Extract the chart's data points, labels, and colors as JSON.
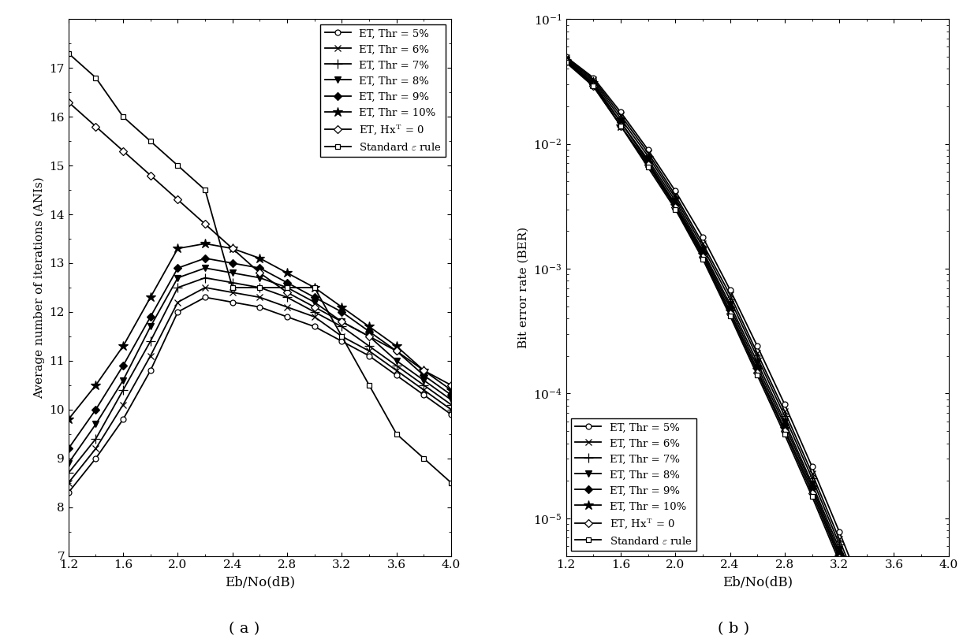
{
  "x_values": [
    1.2,
    1.4,
    1.6,
    1.8,
    2.0,
    2.2,
    2.4,
    2.6,
    2.8,
    3.0,
    3.2,
    3.4,
    3.6,
    3.8,
    4.0
  ],
  "ani_thr5": [
    8.3,
    9.0,
    9.8,
    10.8,
    12.0,
    12.3,
    12.2,
    12.1,
    11.9,
    11.7,
    11.4,
    11.1,
    10.7,
    10.3,
    9.9
  ],
  "ani_thr6": [
    8.5,
    9.2,
    10.1,
    11.1,
    12.2,
    12.5,
    12.4,
    12.3,
    12.1,
    11.9,
    11.5,
    11.2,
    10.8,
    10.4,
    10.0
  ],
  "ani_thr7": [
    8.7,
    9.4,
    10.4,
    11.4,
    12.5,
    12.7,
    12.6,
    12.5,
    12.3,
    12.0,
    11.7,
    11.3,
    10.9,
    10.5,
    10.1
  ],
  "ani_thr8": [
    8.9,
    9.7,
    10.6,
    11.7,
    12.7,
    12.9,
    12.8,
    12.7,
    12.5,
    12.2,
    11.8,
    11.5,
    11.0,
    10.6,
    10.2
  ],
  "ani_thr9": [
    9.2,
    10.0,
    10.9,
    11.9,
    12.9,
    13.1,
    13.0,
    12.9,
    12.6,
    12.3,
    12.0,
    11.6,
    11.2,
    10.7,
    10.3
  ],
  "ani_thr10": [
    9.8,
    10.5,
    11.3,
    12.3,
    13.3,
    13.4,
    13.3,
    13.1,
    12.8,
    12.5,
    12.1,
    11.7,
    11.3,
    10.8,
    10.4
  ],
  "ani_hx": [
    16.3,
    15.8,
    15.3,
    14.8,
    14.3,
    13.8,
    13.3,
    12.8,
    12.4,
    12.1,
    11.8,
    11.5,
    11.2,
    10.8,
    10.5
  ],
  "ani_std": [
    17.3,
    16.8,
    16.0,
    15.5,
    15.0,
    14.5,
    12.5,
    12.5,
    12.5,
    12.5,
    11.5,
    10.5,
    9.5,
    9.0,
    8.5
  ],
  "ber_thr5": [
    0.05,
    0.034,
    0.018,
    0.009,
    0.0042,
    0.0018,
    0.00068,
    0.00024,
    8.2e-05,
    2.6e-05,
    7.8e-06,
    2.2e-06,
    5.8e-07,
    1.4e-07,
    3.2e-08
  ],
  "ber_thr6": [
    0.049,
    0.033,
    0.017,
    0.0085,
    0.0039,
    0.0016,
    0.00062,
    0.00021,
    7.2e-05,
    2.3e-05,
    6.8e-06,
    1.9e-06,
    5e-07,
    1.2e-07,
    2.8e-08
  ],
  "ber_thr7": [
    0.048,
    0.032,
    0.016,
    0.008,
    0.0037,
    0.0015,
    0.00057,
    0.000195,
    6.6e-05,
    2.1e-05,
    6.2e-06,
    1.75e-06,
    4.6e-07,
    1.1e-07,
    2.6e-08
  ],
  "ber_thr8": [
    0.047,
    0.031,
    0.015,
    0.0075,
    0.0035,
    0.0014,
    0.00052,
    0.000178,
    6e-05,
    1.9e-05,
    5.7e-06,
    1.6e-06,
    4.2e-07,
    1e-07,
    2.4e-08
  ],
  "ber_thr9": [
    0.047,
    0.03,
    0.015,
    0.0072,
    0.0033,
    0.00135,
    0.00049,
    0.000165,
    5.6e-05,
    1.8e-05,
    5.3e-06,
    1.5e-06,
    3.9e-07,
    9.5e-08,
    2.2e-08
  ],
  "ber_thr10": [
    0.046,
    0.03,
    0.014,
    0.007,
    0.0032,
    0.0013,
    0.00046,
    0.000155,
    5.2e-05,
    1.7e-05,
    5e-06,
    1.4e-06,
    3.7e-07,
    9e-08,
    2.1e-08
  ],
  "ber_hx": [
    0.046,
    0.029,
    0.014,
    0.0068,
    0.0031,
    0.00125,
    0.00044,
    0.000148,
    5e-05,
    1.6e-05,
    4.8e-06,
    1.35e-06,
    3.5e-07,
    8.5e-08,
    2e-08
  ],
  "ber_std": [
    0.045,
    0.029,
    0.014,
    0.0065,
    0.003,
    0.0012,
    0.00042,
    0.00014,
    4.7e-05,
    1.5e-05,
    4.5e-06,
    1.25e-06,
    3.2e-07,
    7.8e-08,
    1.8e-08
  ],
  "ylabel_a": "Average number of iterations (ANIs)",
  "ylabel_b": "Bit error rate (BER)",
  "xlabel": "Eb/No(dB)",
  "label_a": "( a )",
  "label_b": "( b )",
  "legend_labels": [
    "ET, Thr = 5%",
    "ET, Thr = 6%",
    "ET, Thr = 7%",
    "ET, Thr = 8%",
    "ET, Thr = 9%",
    "ET, Thr = 10%",
    "ET, Hx$^{\\mathrm{T}}$ = 0",
    "Standard $\\varepsilon$ rule"
  ],
  "xticks": [
    1.2,
    1.6,
    2.0,
    2.4,
    2.8,
    3.2,
    3.6,
    4.0
  ],
  "ylim_a": [
    7,
    18
  ],
  "yticks_a": [
    7,
    8,
    9,
    10,
    11,
    12,
    13,
    14,
    15,
    16,
    17
  ],
  "ylim_b_low": 5e-06,
  "ylim_b_high": 0.1,
  "background_color": "#ffffff"
}
